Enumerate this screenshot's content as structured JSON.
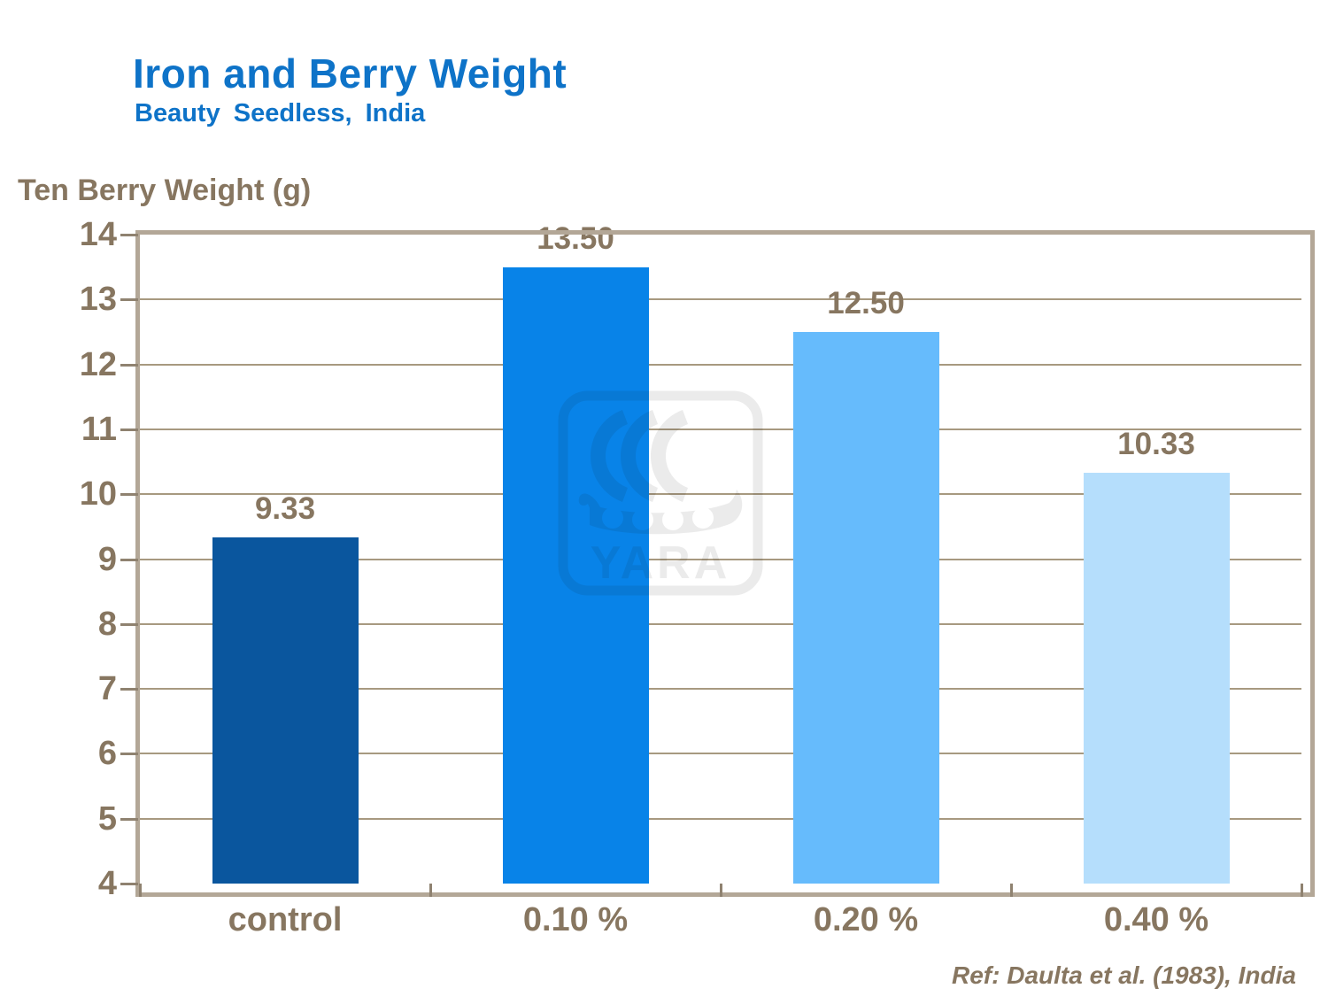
{
  "header": {
    "title": "Iron and Berry Weight",
    "subtitle": "Beauty Seedless, India"
  },
  "footer": {
    "reference": "Ref: Daulta et al. (1983), India"
  },
  "watermark": {
    "name": "YARA",
    "label": "YARA"
  },
  "colors": {
    "title_blue": "#0E73C8",
    "text_brown": "#877660",
    "axis_tan": "#B3A797",
    "gridline_tan": "#A79980",
    "tick_brown": "#8F8270",
    "watermark_gray": "#EBEBEB",
    "background": "#FFFFFF"
  },
  "chart_data": {
    "type": "bar",
    "title": "Iron and Berry Weight",
    "subtitle": "Beauty Seedless, India",
    "ylabel": "Ten Berry Weight (g)",
    "xlabel": "",
    "categories": [
      "control",
      "0.10 %",
      "0.20 %",
      "0.40 %"
    ],
    "values": [
      9.33,
      13.5,
      12.5,
      10.33
    ],
    "value_labels": [
      "9.33",
      "13.50",
      "12.50",
      "10.33"
    ],
    "bar_colors": [
      "#0A569E",
      "#0883E8",
      "#66BBFC",
      "#B5DEFC"
    ],
    "ylim": [
      4,
      14
    ],
    "ytick_step": 1,
    "ytick_labels": [
      "4",
      "5",
      "6",
      "7",
      "8",
      "9",
      "10",
      "11",
      "12",
      "13",
      "14"
    ],
    "grid": true,
    "legend": false
  }
}
